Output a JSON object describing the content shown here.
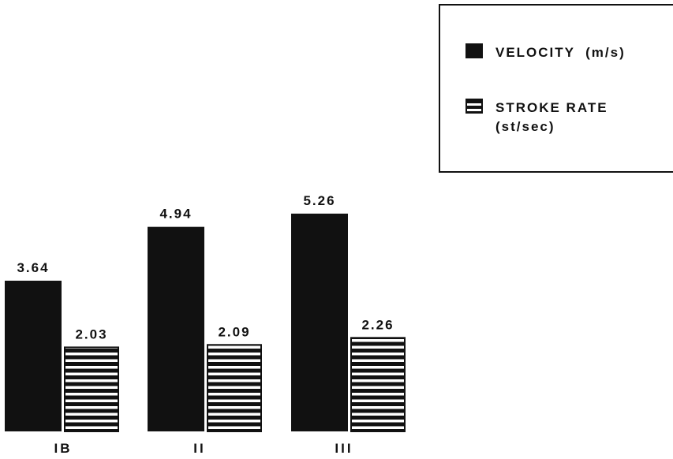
{
  "chart_data": {
    "type": "bar",
    "categories": [
      "IB",
      "II",
      "III"
    ],
    "series": [
      {
        "name": "VELOCITY  (m/s)",
        "values": [
          3.64,
          4.94,
          5.26
        ],
        "value_labels": [
          "3.64",
          "4.94",
          "5.26"
        ],
        "color": "#111111",
        "pattern": "solid"
      },
      {
        "name": "STROKE RATE (st/sec)",
        "values": [
          2.03,
          2.09,
          2.26
        ],
        "value_labels": [
          "2.03",
          "2.09",
          "2.26"
        ],
        "color": "#111111",
        "pattern": "horizontal-stripes"
      }
    ],
    "title": "",
    "xlabel": "",
    "ylabel": "",
    "grid": false,
    "legend_position": "top-right"
  },
  "legend": {
    "velocity_label": "VELOCITY  (m/s)",
    "stroke_label": "STROKE RATE\n(st/sec)"
  }
}
